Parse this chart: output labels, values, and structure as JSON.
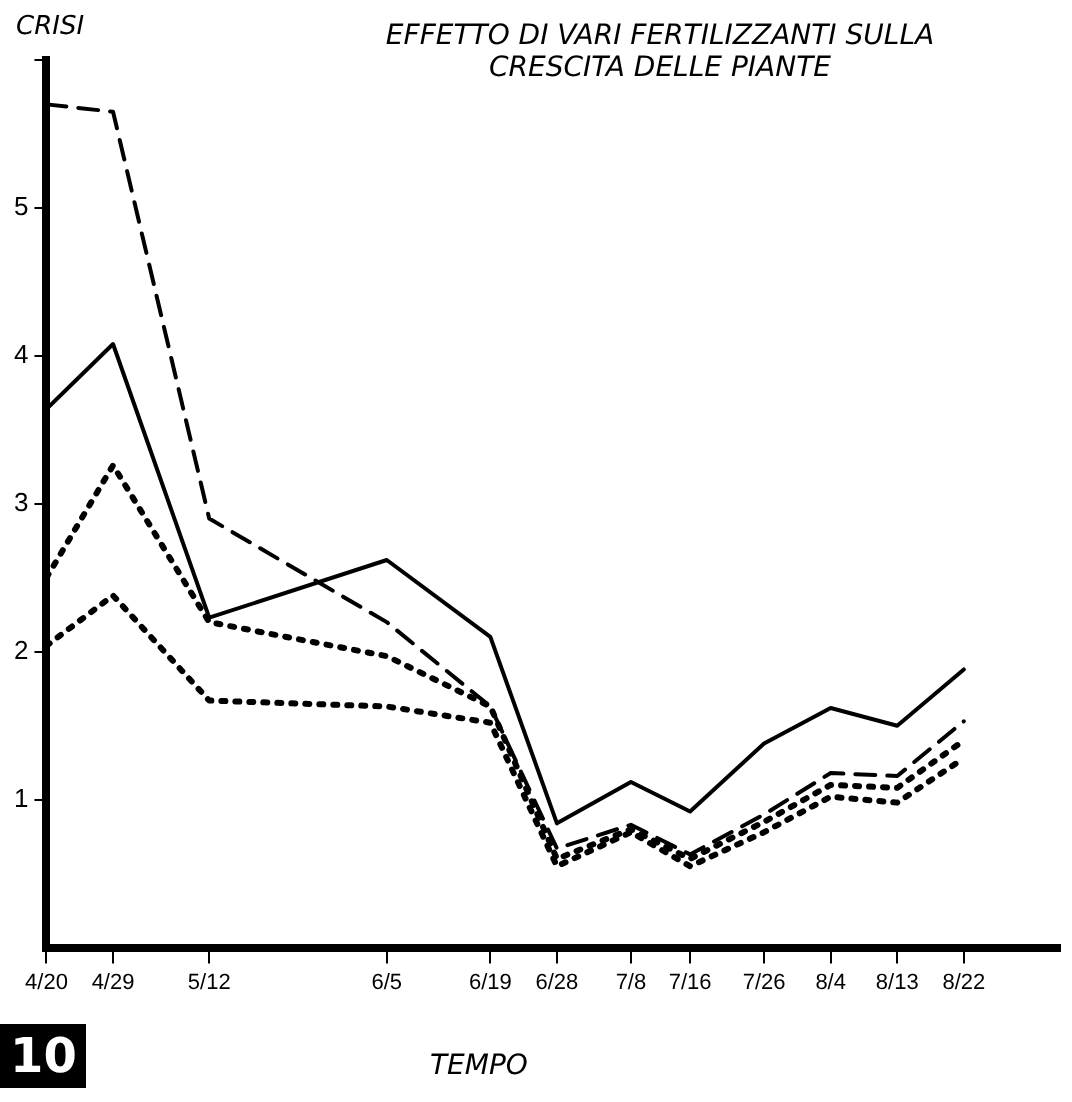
{
  "chart_data": {
    "type": "line",
    "title": "EFFETTO DI VARI FERTILIZZANTI SULLA CRESCITA DELLE PIANTE",
    "xlabel": "TEMPO",
    "ylabel": "CRISI",
    "annotations": [
      "10"
    ],
    "x": [
      "--04-20",
      "--04-29",
      "--05-12",
      "--06-05",
      "--06-19",
      "--06-28",
      "--07-08",
      "--07-16",
      "--07-26",
      "--08-04",
      "--08-13",
      "--08-22"
    ],
    "xlim": [
      "--04-20",
      "--09-04"
    ],
    "xticks": [
      {
        "value": "--04-20",
        "label": "4/20"
      },
      {
        "value": "--04-29",
        "label": "4/29"
      },
      {
        "value": "--05-12",
        "label": "5/12"
      },
      {
        "value": "--06-05",
        "label": "6/5"
      },
      {
        "value": "--06-19",
        "label": "6/19"
      },
      {
        "value": "--06-28",
        "label": "6/28"
      },
      {
        "value": "--07-08",
        "label": "7/8"
      },
      {
        "value": "--07-16",
        "label": "7/16"
      },
      {
        "value": "--07-26",
        "label": "7/26"
      },
      {
        "value": "--08-04",
        "label": "8/4"
      },
      {
        "value": "--08-13",
        "label": "8/13"
      },
      {
        "value": "--08-22",
        "label": "8/22"
      }
    ],
    "ylim": [
      0,
      6
    ],
    "yticks": [
      1,
      2,
      3,
      4,
      5,
      {
        "value": 6,
        "label": null
      }
    ],
    "grid": false,
    "legend": false,
    "marker": "none",
    "series": [
      {
        "color": "#000000",
        "line_style": "dashed",
        "values": [
          5.7,
          5.65,
          2.9,
          2.2,
          1.63,
          0.67,
          0.83,
          0.63,
          0.9,
          1.18,
          1.16,
          1.53
        ]
      },
      {
        "color": "#000000",
        "line_style": "solid",
        "values": [
          3.64,
          4.08,
          2.23,
          2.62,
          2.1,
          0.84,
          1.12,
          0.92,
          1.38,
          1.62,
          1.5,
          1.88
        ]
      },
      {
        "color": "#000000",
        "line_style": "dotted",
        "values": [
          2.5,
          3.26,
          2.2,
          1.97,
          1.63,
          0.6,
          0.8,
          0.6,
          0.85,
          1.1,
          1.08,
          1.4
        ]
      },
      {
        "color": "#000000",
        "line_style": "dotted",
        "values": [
          2.04,
          2.38,
          1.67,
          1.63,
          1.52,
          0.55,
          0.78,
          0.55,
          0.78,
          1.02,
          0.98,
          1.28
        ]
      }
    ]
  }
}
